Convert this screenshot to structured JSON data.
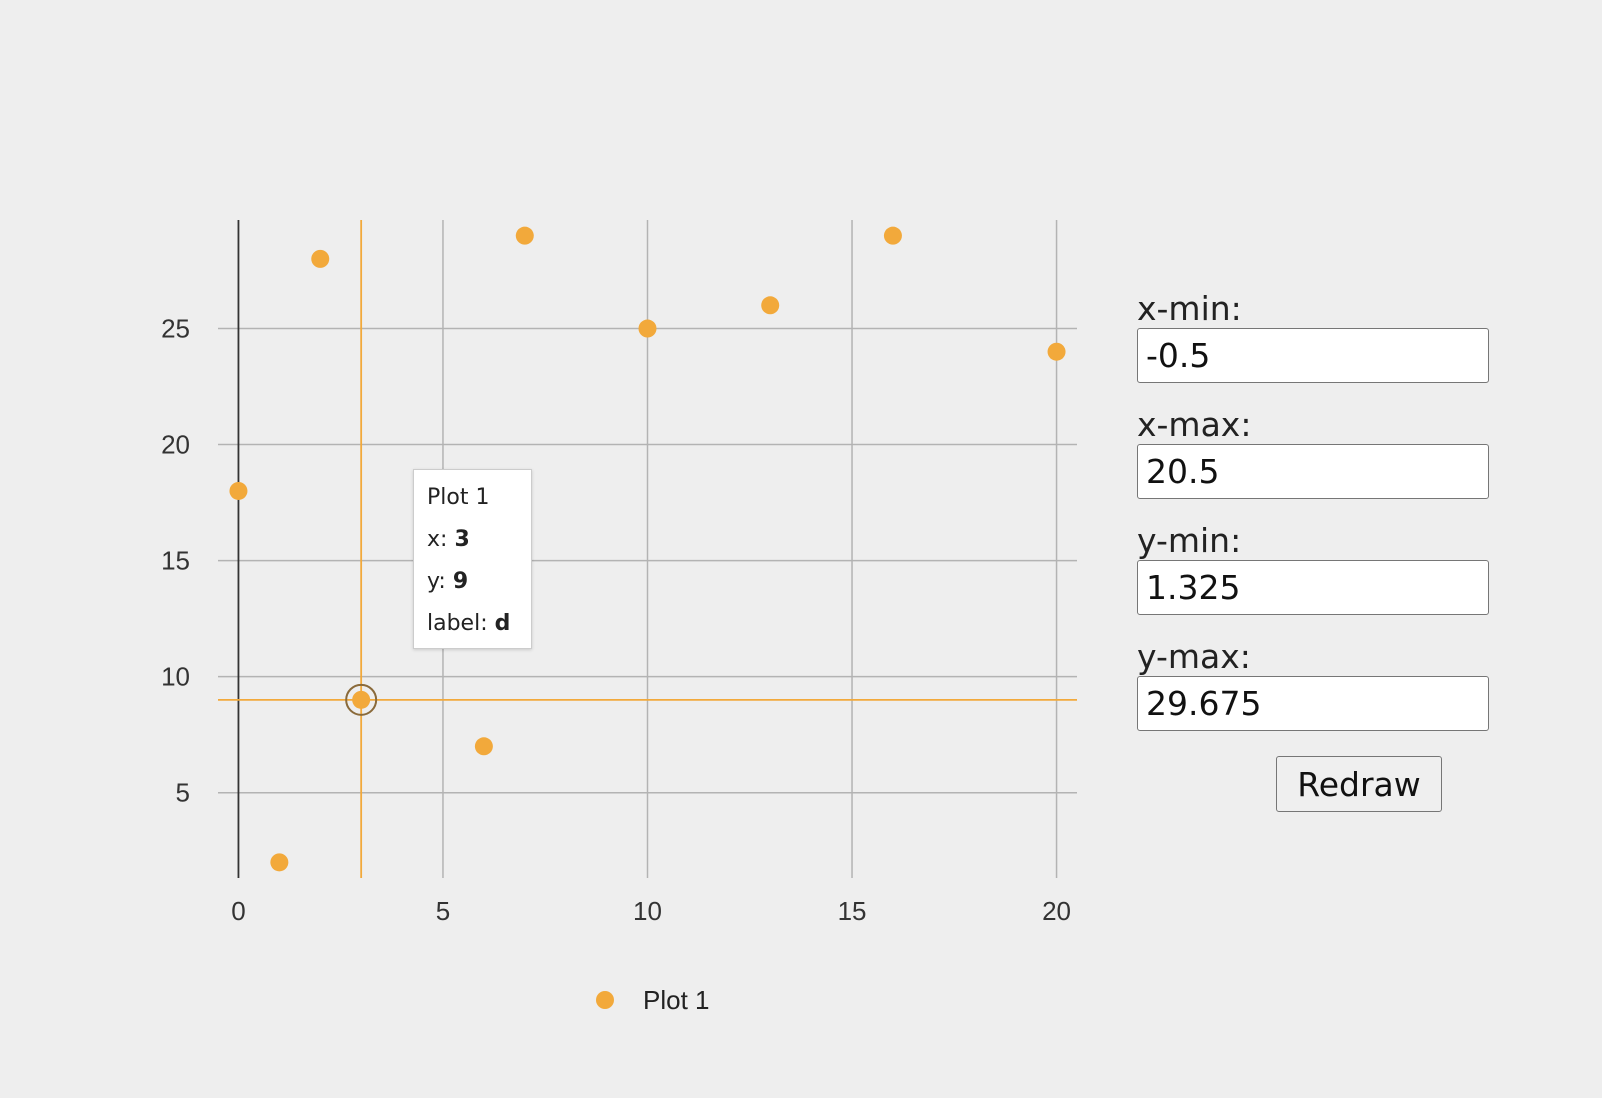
{
  "chart_data": {
    "type": "scatter",
    "series": [
      {
        "name": "Plot 1",
        "color": "#f2a93b",
        "points": [
          {
            "x": 0,
            "y": 18
          },
          {
            "x": 1,
            "y": 2
          },
          {
            "x": 2,
            "y": 28
          },
          {
            "x": 3,
            "y": 9,
            "label": "d"
          },
          {
            "x": 6,
            "y": 7
          },
          {
            "x": 7,
            "y": 29
          },
          {
            "x": 10,
            "y": 25
          },
          {
            "x": 13,
            "y": 26
          },
          {
            "x": 16,
            "y": 29
          },
          {
            "x": 20,
            "y": 24
          }
        ]
      }
    ],
    "xlim": [
      -0.5,
      20.5
    ],
    "ylim": [
      1.325,
      29.675
    ],
    "x_ticks": [
      0,
      5,
      10,
      15,
      20
    ],
    "y_ticks": [
      5,
      10,
      15,
      20,
      25
    ],
    "grid": true,
    "legend_position": "bottom",
    "highlighted_point": {
      "x": 3,
      "y": 9
    }
  },
  "tooltip": {
    "series": "Plot 1",
    "x_key": "x:",
    "x_value": "3",
    "y_key": "y:",
    "y_value": "9",
    "label_key": "label:",
    "label_value": "d"
  },
  "controls": {
    "xmin": {
      "label": "x-min:",
      "value": "-0.5"
    },
    "xmax": {
      "label": "x-max:",
      "value": "20.5"
    },
    "ymin": {
      "label": "y-min:",
      "value": "1.325"
    },
    "ymax": {
      "label": "y-max:",
      "value": "29.675"
    },
    "redraw_label": "Redraw"
  },
  "colors": {
    "accent": "#f2a93b",
    "grid": "#b3b3b3",
    "axis": "#333333"
  }
}
